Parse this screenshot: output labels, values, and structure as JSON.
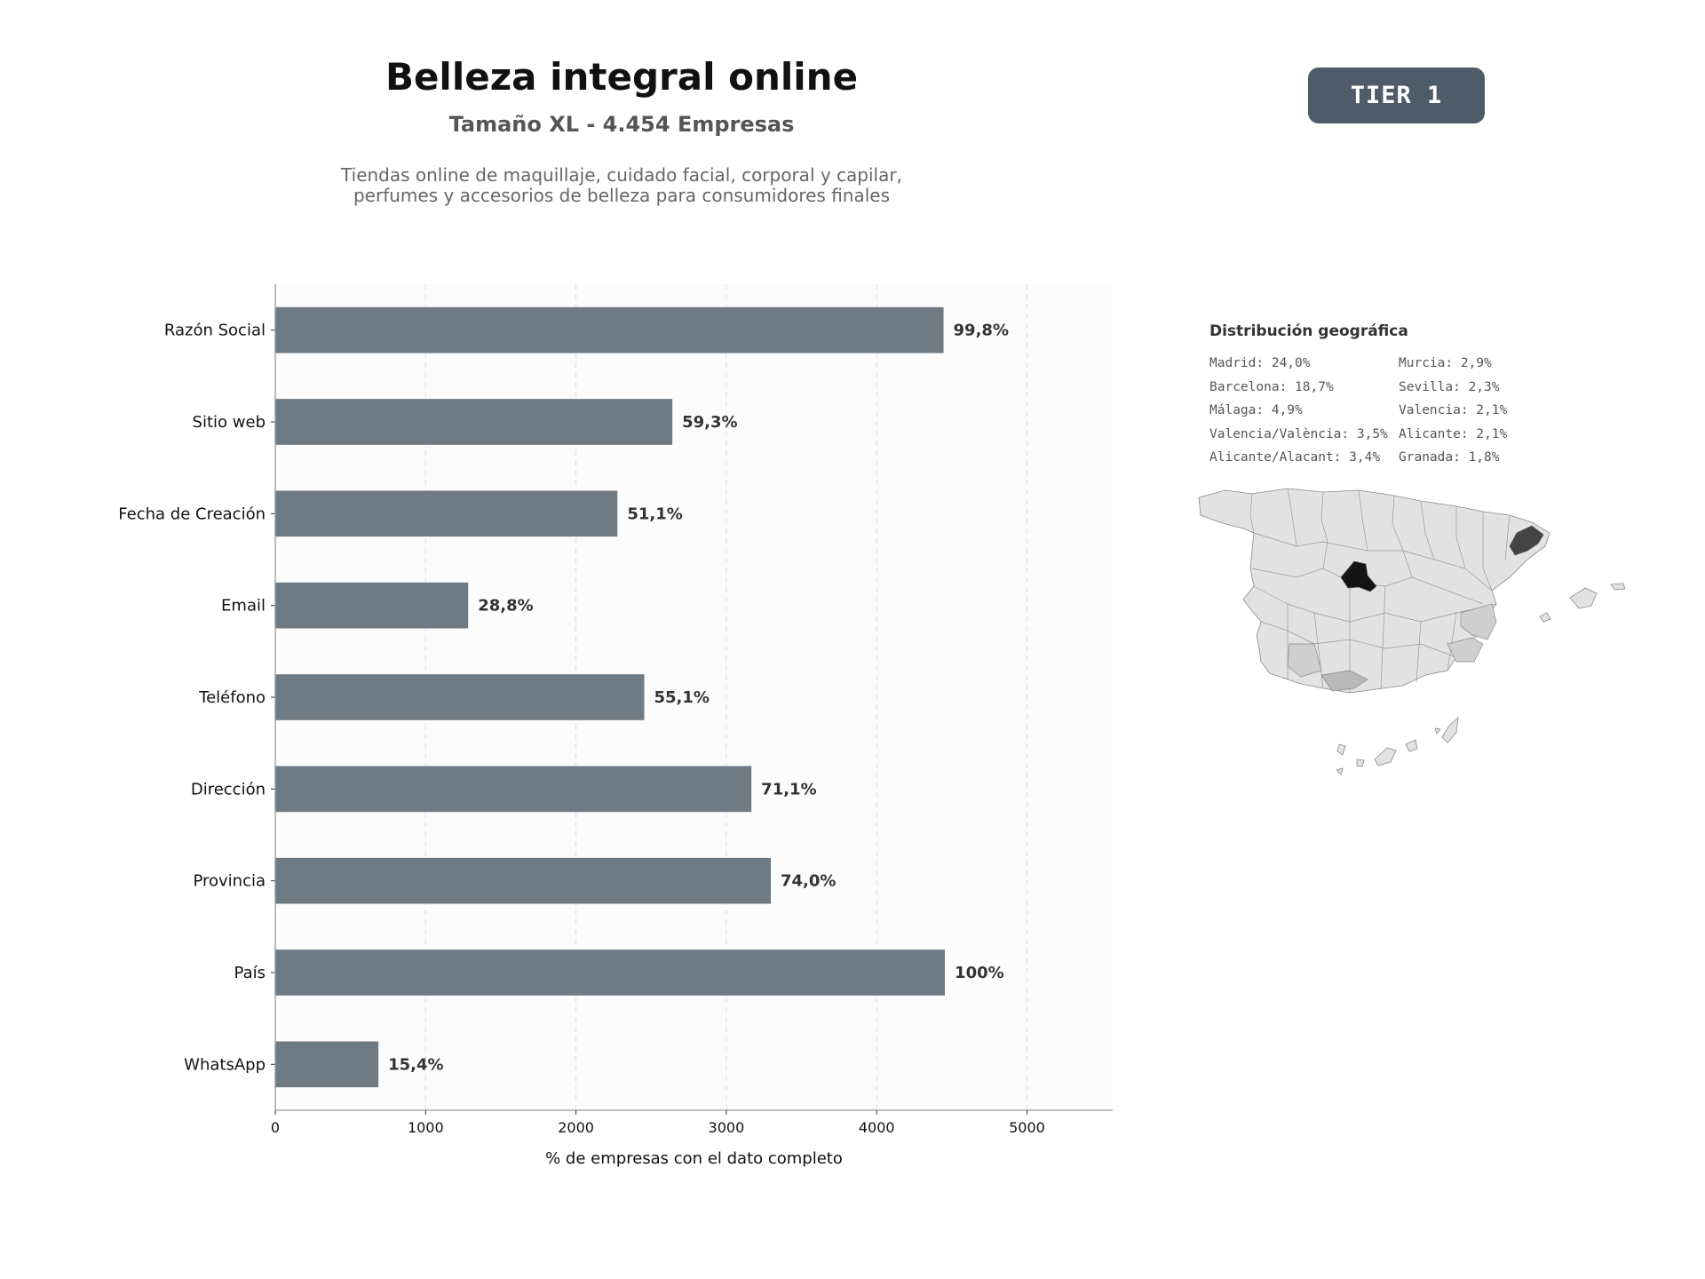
{
  "header": {
    "title": "Belleza integral online",
    "subtitle": "Tamaño XL - 4.454 Empresas",
    "description_lines": [
      "Tiendas online de maquillaje, cuidado facial, corporal y capilar,",
      "perfumes y accesorios de belleza para consumidores finales"
    ]
  },
  "badge": {
    "label": "TIER 1"
  },
  "chart_data": {
    "type": "bar",
    "orientation": "horizontal",
    "categories": [
      "Razón Social",
      "Sitio web",
      "Fecha de Creación",
      "Email",
      "Teléfono",
      "Dirección",
      "Provincia",
      "País",
      "WhatsApp"
    ],
    "values": [
      4445,
      2641,
      2276,
      1283,
      2454,
      3167,
      3296,
      4454,
      686
    ],
    "labels": [
      "99,8%",
      "59,3%",
      "51,1%",
      "28,8%",
      "55,1%",
      "71,1%",
      "74,0%",
      "100%",
      "15,4%"
    ],
    "xlabel": "% de empresas con el dato completo",
    "ylabel": "",
    "xlim": [
      0,
      5570
    ],
    "xticks": [
      0,
      1000,
      2000,
      3000,
      4000,
      5000
    ],
    "grid": "vertical dashed",
    "bar_color": "#6e7a84",
    "label_color": "#333333"
  },
  "geo": {
    "title": "Distribución geográfica",
    "col1": [
      "Madrid: 24,0%",
      "Barcelona: 18,7%",
      "Málaga: 4,9%",
      "Valencia/València: 3,5%",
      "Alicante/Alacant: 3,4%"
    ],
    "col2": [
      "Murcia: 2,9%",
      "Sevilla: 2,3%",
      "Valencia: 2,1%",
      "Alicante: 2,1%",
      "Granada: 1,8%"
    ]
  },
  "colors": {
    "map_base": "#e2e2e2",
    "map_madrid": "#141414",
    "map_barcelona": "#444444",
    "map_malaga": "#b9b9b9",
    "map_mid": "#cfcfcf",
    "map_border": "#8a8a8a",
    "badge_bg": "#4e5b68"
  }
}
